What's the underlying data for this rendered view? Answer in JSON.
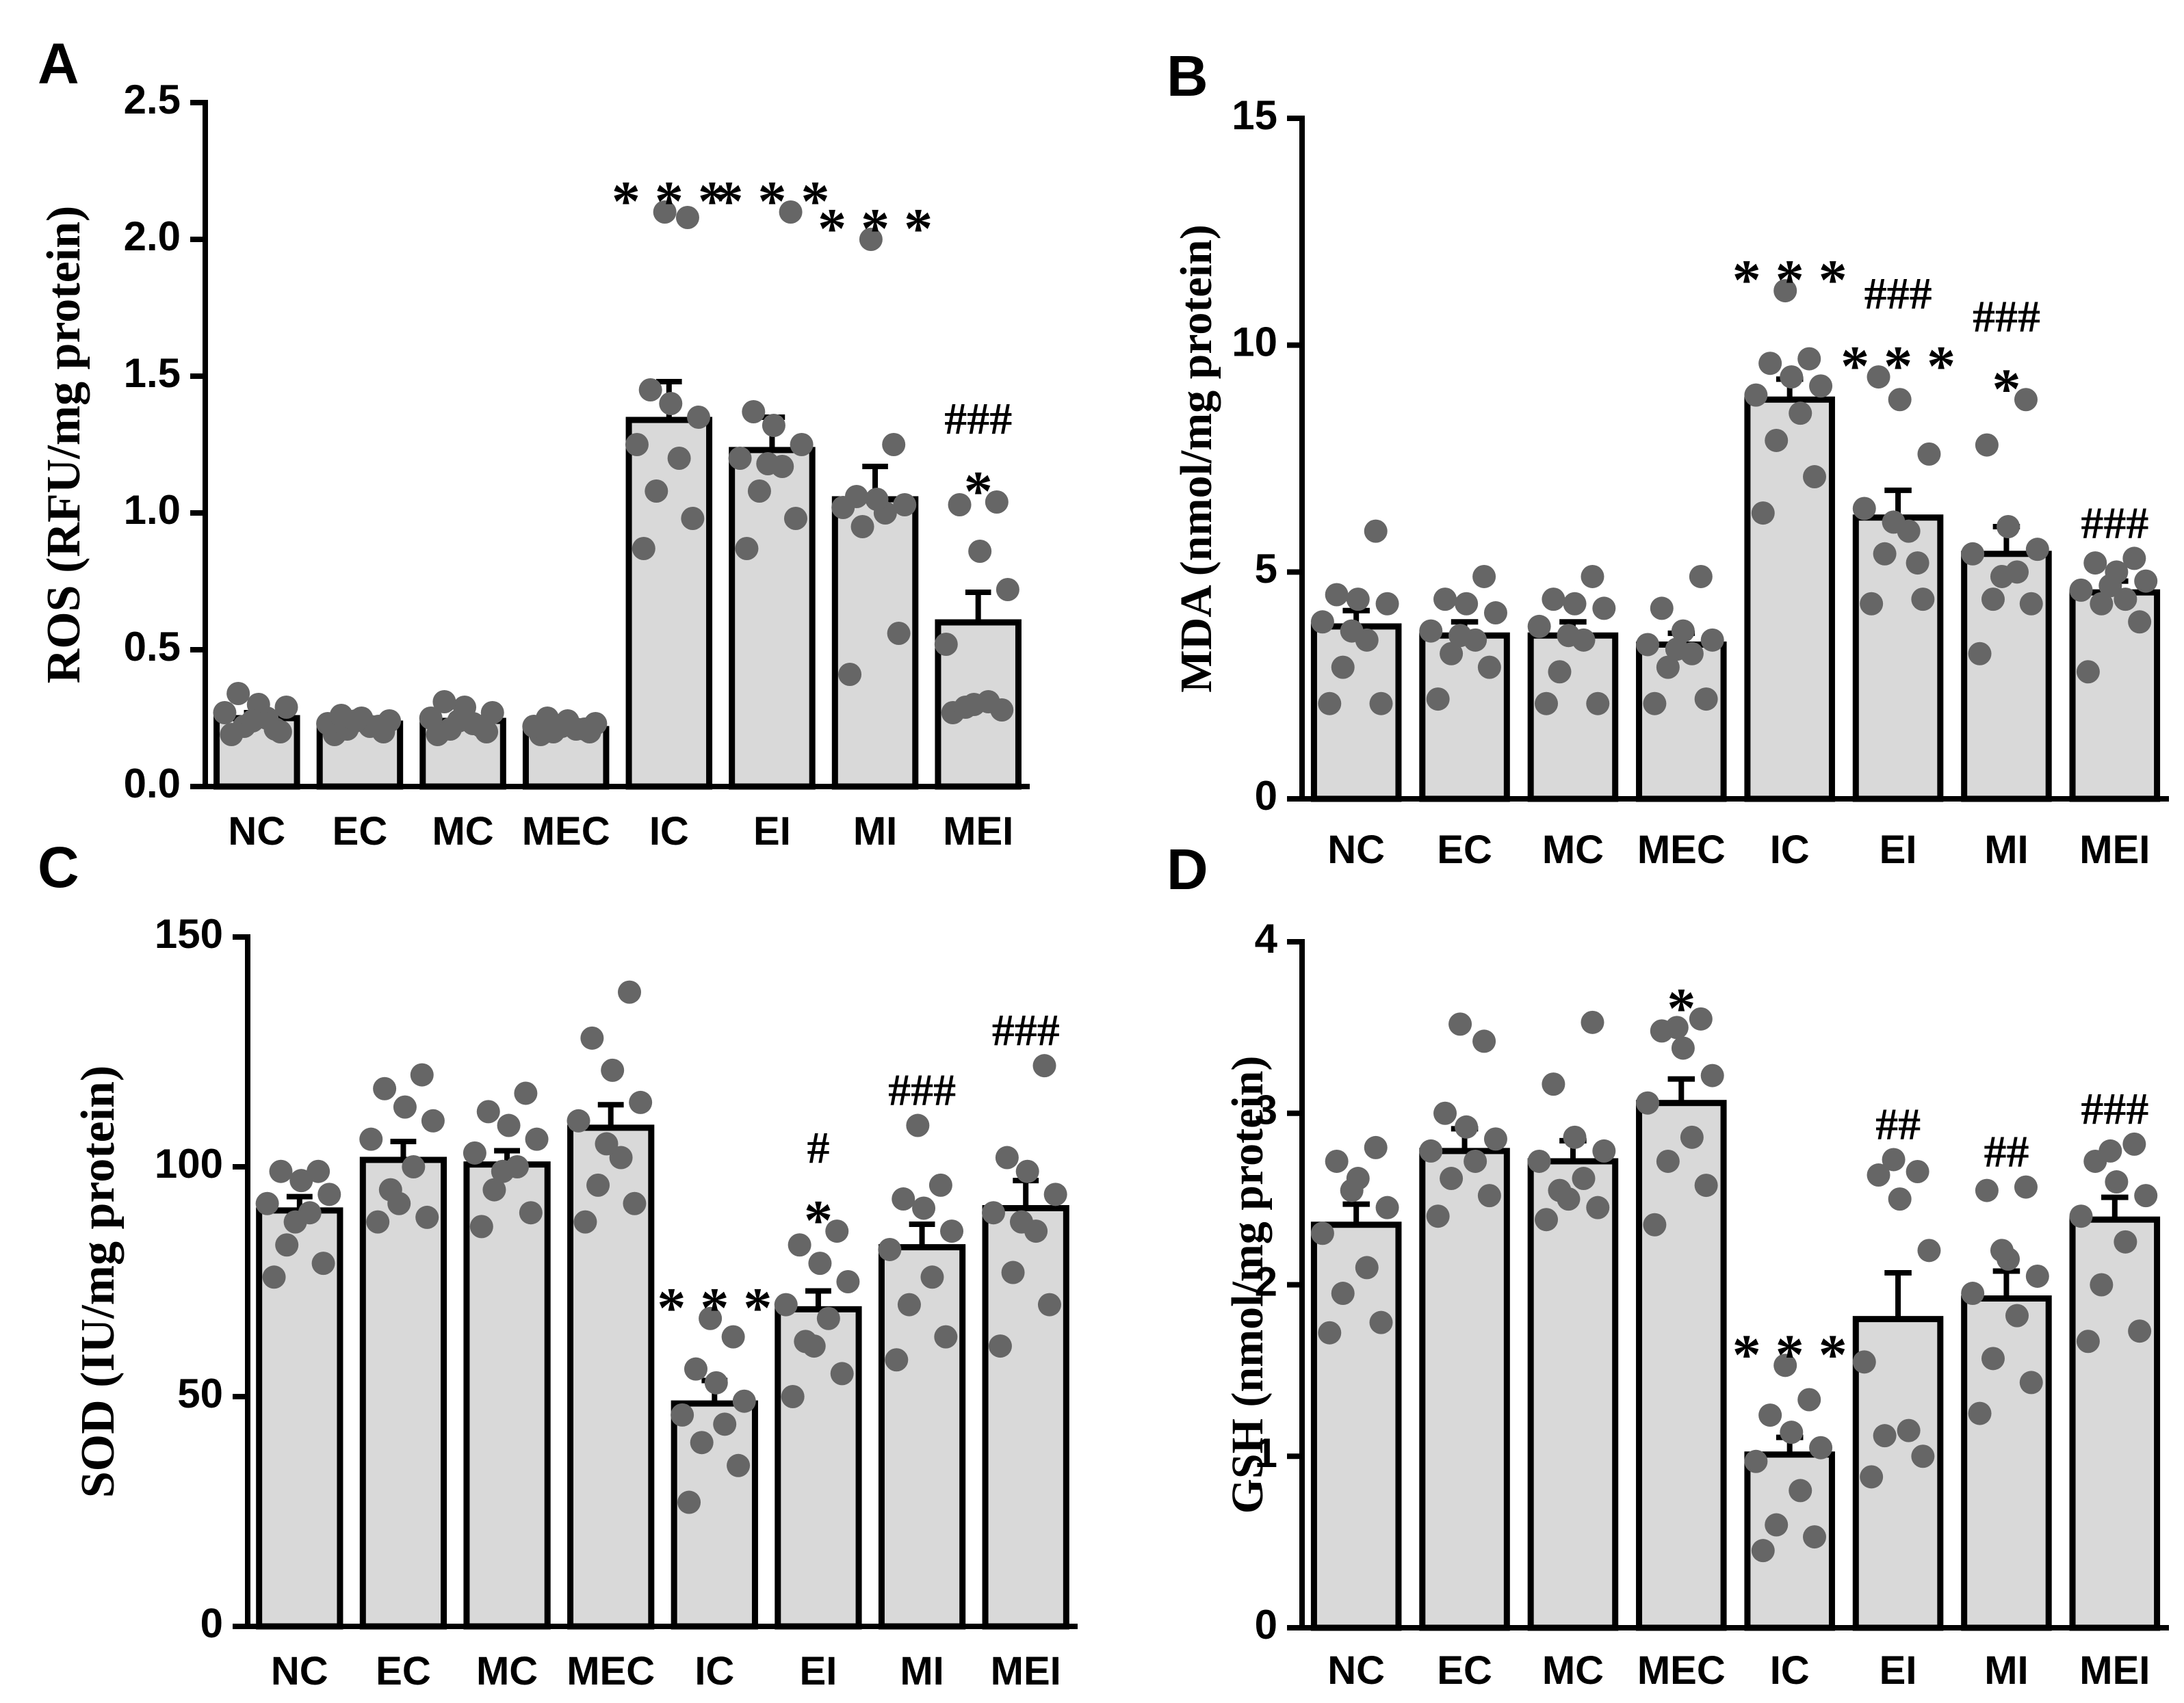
{
  "figure": {
    "styles": {
      "bar_fill": "#d9d9d9",
      "bar_stroke": "#000000",
      "dot_color": "#666666",
      "axis_color": "#000000"
    }
  },
  "chart_data": [
    {
      "panel": "A",
      "type": "bar",
      "title": "",
      "ylabel": "ROS (RFU/mg protein)",
      "xlabel": "",
      "categories": [
        "NC",
        "EC",
        "MC",
        "MEC",
        "IC",
        "EI",
        "MI",
        "MEI"
      ],
      "ylim": [
        0,
        2.5
      ],
      "yticks": [
        0.0,
        0.5,
        1.0,
        1.5,
        2.0,
        2.5
      ],
      "ytick_labels": [
        "0.0",
        "0.5",
        "1.0",
        "1.5",
        "2.0",
        "2.5"
      ],
      "values": [
        0.25,
        0.23,
        0.24,
        0.21,
        1.34,
        1.23,
        1.05,
        0.6
      ],
      "errors": [
        0.02,
        0.01,
        0.02,
        0.01,
        0.14,
        0.12,
        0.12,
        0.11
      ],
      "points": [
        [
          0.19,
          0.2,
          0.22,
          0.25,
          0.27,
          0.29,
          0.3,
          0.34,
          0.21,
          0.24
        ],
        [
          0.19,
          0.2,
          0.21,
          0.22,
          0.23,
          0.24,
          0.25,
          0.26,
          0.22,
          0.24
        ],
        [
          0.19,
          0.2,
          0.21,
          0.23,
          0.25,
          0.27,
          0.29,
          0.31,
          0.22,
          0.24
        ],
        [
          0.19,
          0.2,
          0.2,
          0.21,
          0.22,
          0.23,
          0.24,
          0.25,
          0.21,
          0.22
        ],
        [
          0.87,
          0.98,
          1.08,
          1.2,
          1.25,
          1.35,
          1.4,
          1.45,
          2.08,
          2.1
        ],
        [
          0.87,
          0.98,
          1.08,
          1.17,
          1.2,
          1.25,
          1.32,
          1.37,
          2.1,
          1.18
        ],
        [
          0.41,
          0.56,
          0.95,
          1.0,
          1.02,
          1.03,
          1.05,
          1.06,
          1.25,
          2.0
        ],
        [
          0.27,
          0.28,
          0.29,
          0.31,
          0.52,
          0.72,
          0.86,
          1.03,
          1.04,
          0.3
        ]
      ],
      "significance": [
        {
          "group": "IC",
          "lines": [
            "* * *"
          ]
        },
        {
          "group": "EI",
          "lines": [
            "* * *"
          ]
        },
        {
          "group": "MI",
          "lines": [
            "* * *"
          ]
        },
        {
          "group": "MEI",
          "lines": [
            "###",
            "*"
          ]
        }
      ]
    },
    {
      "panel": "B",
      "type": "bar",
      "title": "",
      "ylabel": "MDA (nmol/mg protein)",
      "xlabel": "",
      "categories": [
        "NC",
        "EC",
        "MC",
        "MEC",
        "IC",
        "EI",
        "MI",
        "MEI"
      ],
      "ylim": [
        0,
        15
      ],
      "yticks": [
        0,
        5,
        10,
        15
      ],
      "ytick_labels": [
        "0",
        "5",
        "10",
        "15"
      ],
      "values": [
        3.8,
        3.6,
        3.6,
        3.4,
        8.8,
        6.2,
        5.4,
        4.55
      ],
      "errors": [
        0.35,
        0.3,
        0.3,
        0.25,
        0.45,
        0.6,
        0.6,
        0.25
      ],
      "points": [
        [
          2.1,
          2.1,
          2.9,
          3.5,
          3.9,
          4.3,
          4.4,
          4.5,
          5.9,
          3.7
        ],
        [
          2.2,
          2.9,
          3.2,
          3.5,
          3.7,
          4.1,
          4.3,
          4.4,
          4.9,
          3.6
        ],
        [
          2.1,
          2.1,
          2.8,
          3.5,
          3.8,
          4.2,
          4.3,
          4.4,
          4.9,
          3.6
        ],
        [
          2.1,
          2.2,
          2.9,
          3.2,
          3.4,
          3.5,
          3.7,
          4.2,
          4.9,
          3.3
        ],
        [
          6.3,
          7.1,
          7.9,
          8.5,
          8.9,
          9.1,
          9.3,
          9.6,
          9.7,
          11.2
        ],
        [
          4.3,
          4.4,
          5.4,
          5.9,
          6.4,
          7.6,
          8.8,
          9.3,
          5.2,
          6.1
        ],
        [
          3.2,
          4.3,
          4.4,
          5.0,
          5.4,
          5.5,
          6.0,
          7.8,
          8.8,
          4.9
        ],
        [
          2.8,
          3.9,
          4.3,
          4.4,
          4.6,
          4.8,
          5.0,
          5.2,
          5.3,
          4.7
        ]
      ],
      "significance": [
        {
          "group": "IC",
          "lines": [
            "* * *"
          ]
        },
        {
          "group": "EI",
          "lines": [
            "###",
            "* * *"
          ]
        },
        {
          "group": "MI",
          "lines": [
            "###",
            "*"
          ]
        },
        {
          "group": "MEI",
          "lines": [
            "###"
          ]
        }
      ]
    },
    {
      "panel": "C",
      "type": "bar",
      "title": "",
      "ylabel": "SOD (IU/mg protein)",
      "xlabel": "",
      "categories": [
        "NC",
        "EC",
        "MC",
        "MEC",
        "IC",
        "EI",
        "MI",
        "MEI"
      ],
      "ylim": [
        0,
        150
      ],
      "yticks": [
        0,
        50,
        100,
        150
      ],
      "ytick_labels": [
        "0",
        "50",
        "100",
        "150"
      ],
      "values": [
        90.5,
        101.5,
        100.5,
        108.5,
        48.5,
        69,
        82.5,
        91
      ],
      "errors": [
        3,
        4,
        3,
        5,
        5,
        4,
        5,
        6
      ],
      "points": [
        [
          76,
          79,
          83,
          90,
          92,
          94,
          97,
          99,
          99,
          88
        ],
        [
          88,
          89,
          95,
          100,
          106,
          110,
          113,
          117,
          120,
          92
        ],
        [
          87,
          90,
          95,
          100,
          103,
          106,
          109,
          112,
          116,
          99
        ],
        [
          88,
          92,
          96,
          102,
          110,
          114,
          121,
          128,
          138,
          105
        ],
        [
          27,
          35,
          40,
          44,
          46,
          49,
          53,
          56,
          63,
          67
        ],
        [
          50,
          55,
          62,
          67,
          70,
          75,
          79,
          83,
          86,
          61
        ],
        [
          58,
          63,
          70,
          76,
          82,
          86,
          91,
          93,
          96,
          109
        ],
        [
          61,
          70,
          77,
          86,
          90,
          94,
          99,
          102,
          122,
          88
        ]
      ],
      "significance": [
        {
          "group": "IC",
          "lines": [
            "* * *"
          ]
        },
        {
          "group": "EI",
          "lines": [
            "#",
            "*"
          ]
        },
        {
          "group": "MI",
          "lines": [
            "###"
          ]
        },
        {
          "group": "MEI",
          "lines": [
            "###"
          ]
        }
      ]
    },
    {
      "panel": "D",
      "type": "bar",
      "title": "",
      "ylabel": "GSH (nmol/mg protein)",
      "xlabel": "",
      "categories": [
        "NC",
        "EC",
        "MC",
        "MEC",
        "IC",
        "EI",
        "MI",
        "MEI"
      ],
      "ylim": [
        0,
        4
      ],
      "yticks": [
        0,
        1,
        2,
        3,
        4
      ],
      "ytick_labels": [
        "0",
        "1",
        "2",
        "3",
        "4"
      ],
      "values": [
        2.35,
        2.78,
        2.72,
        3.06,
        1.01,
        1.8,
        1.92,
        2.38
      ],
      "errors": [
        0.12,
        0.13,
        0.12,
        0.14,
        0.1,
        0.27,
        0.16,
        0.13
      ],
      "points": [
        [
          1.72,
          1.78,
          1.95,
          2.1,
          2.3,
          2.45,
          2.62,
          2.72,
          2.8,
          2.55
        ],
        [
          2.4,
          2.52,
          2.62,
          2.72,
          2.78,
          2.85,
          2.92,
          3.0,
          3.42,
          3.52
        ],
        [
          2.38,
          2.45,
          2.55,
          2.62,
          2.72,
          2.78,
          2.86,
          3.17,
          3.53,
          2.5
        ],
        [
          2.35,
          2.58,
          2.72,
          2.86,
          3.06,
          3.22,
          3.38,
          3.48,
          3.55,
          3.5
        ],
        [
          0.45,
          0.53,
          0.6,
          0.8,
          0.97,
          1.05,
          1.14,
          1.24,
          1.33,
          1.53
        ],
        [
          0.88,
          1.0,
          1.12,
          1.15,
          1.55,
          2.2,
          2.5,
          2.64,
          2.66,
          2.73
        ],
        [
          1.25,
          1.43,
          1.57,
          1.82,
          1.95,
          2.05,
          2.15,
          2.55,
          2.57,
          2.2
        ],
        [
          1.67,
          1.73,
          2.0,
          2.25,
          2.4,
          2.52,
          2.6,
          2.72,
          2.82,
          2.78
        ]
      ],
      "significance": [
        {
          "group": "MEC",
          "lines": [
            "*"
          ]
        },
        {
          "group": "IC",
          "lines": [
            "* * *"
          ]
        },
        {
          "group": "EI",
          "lines": [
            "##"
          ]
        },
        {
          "group": "MI",
          "lines": [
            "##"
          ]
        },
        {
          "group": "MEI",
          "lines": [
            "###"
          ]
        }
      ]
    }
  ]
}
